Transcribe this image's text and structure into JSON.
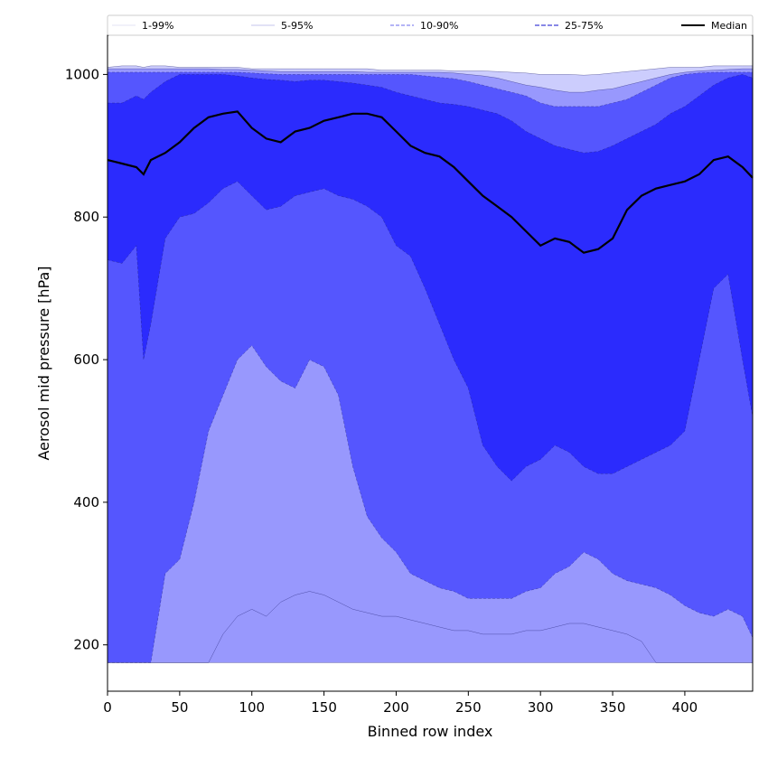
{
  "chart_data": {
    "type": "area",
    "xlabel": "Binned row index",
    "ylabel": "Aerosol mid pressure [hPa]",
    "xlim": [
      0,
      447
    ],
    "ylim": [
      135,
      1055
    ],
    "xticks": [
      0,
      50,
      100,
      150,
      200,
      250,
      300,
      350,
      400
    ],
    "yticks": [
      200,
      400,
      600,
      800,
      1000
    ],
    "grid": false,
    "legend_placement": "top (above plot)",
    "x": [
      0,
      10,
      20,
      25,
      30,
      40,
      50,
      60,
      70,
      80,
      90,
      100,
      110,
      120,
      130,
      140,
      150,
      160,
      170,
      180,
      190,
      200,
      210,
      220,
      230,
      240,
      250,
      260,
      270,
      280,
      290,
      300,
      310,
      320,
      330,
      340,
      350,
      360,
      370,
      380,
      390,
      400,
      410,
      420,
      430,
      440,
      447
    ],
    "bands": [
      {
        "name": "1-99%",
        "color": "#cccdfd",
        "line_style": "solid",
        "lower": [
          175,
          175,
          175,
          175,
          175,
          175,
          175,
          175,
          175,
          215,
          240,
          250,
          240,
          260,
          270,
          275,
          270,
          260,
          250,
          245,
          240,
          240,
          235,
          230,
          225,
          220,
          220,
          215,
          215,
          215,
          220,
          220,
          225,
          230,
          230,
          225,
          220,
          215,
          205,
          175,
          175,
          175,
          175,
          175,
          175,
          175,
          175
        ],
        "upper": [
          1010,
          1012,
          1012,
          1010,
          1012,
          1012,
          1010,
          1010,
          1010,
          1010,
          1010,
          1008,
          1008,
          1008,
          1008,
          1008,
          1008,
          1008,
          1008,
          1008,
          1006,
          1006,
          1006,
          1006,
          1006,
          1005,
          1005,
          1005,
          1004,
          1003,
          1002,
          1000,
          1000,
          1000,
          999,
          1000,
          1002,
          1004,
          1006,
          1008,
          1010,
          1010,
          1010,
          1012,
          1012,
          1012,
          1012
        ]
      },
      {
        "name": "5-95%",
        "color": "#9898fd",
        "line_style": "solid",
        "lower": [
          175,
          175,
          175,
          175,
          175,
          175,
          175,
          175,
          175,
          175,
          175,
          175,
          175,
          175,
          175,
          175,
          175,
          175,
          175,
          175,
          175,
          175,
          175,
          175,
          175,
          175,
          175,
          175,
          175,
          175,
          175,
          175,
          175,
          175,
          175,
          175,
          175,
          175,
          175,
          175,
          175,
          175,
          175,
          175,
          175,
          175,
          175
        ],
        "upper": [
          1008,
          1008,
          1008,
          1008,
          1008,
          1008,
          1008,
          1008,
          1008,
          1007,
          1007,
          1006,
          1005,
          1004,
          1004,
          1004,
          1004,
          1004,
          1004,
          1003,
          1003,
          1003,
          1003,
          1003,
          1003,
          1002,
          1000,
          998,
          995,
          990,
          985,
          982,
          978,
          975,
          975,
          978,
          980,
          985,
          990,
          995,
          1000,
          1003,
          1005,
          1006,
          1007,
          1008,
          1008
        ]
      },
      {
        "name": "10-90%",
        "color": "#5556fe",
        "line_style": "dashed",
        "lower": [
          175,
          175,
          175,
          175,
          175,
          300,
          320,
          400,
          500,
          550,
          600,
          620,
          590,
          570,
          560,
          600,
          590,
          550,
          450,
          380,
          350,
          330,
          300,
          290,
          280,
          275,
          265,
          265,
          265,
          265,
          275,
          280,
          300,
          310,
          330,
          320,
          300,
          290,
          285,
          280,
          270,
          255,
          245,
          240,
          250,
          240,
          210
        ],
        "upper": [
          1003,
          1003,
          1003,
          1003,
          1003,
          1003,
          1003,
          1003,
          1003,
          1003,
          1003,
          1002,
          1001,
          1000,
          1000,
          1000,
          1000,
          1000,
          1000,
          1000,
          1000,
          1000,
          1000,
          998,
          996,
          994,
          990,
          985,
          980,
          975,
          970,
          960,
          955,
          955,
          955,
          955,
          960,
          965,
          975,
          985,
          995,
          1000,
          1002,
          1003,
          1003,
          1003,
          1003
        ]
      },
      {
        "name": "25-75%",
        "color": "#2b2bfd",
        "line_style": "dashed",
        "lower": [
          740,
          735,
          760,
          600,
          650,
          770,
          800,
          805,
          820,
          840,
          850,
          830,
          810,
          815,
          830,
          835,
          840,
          830,
          825,
          815,
          800,
          760,
          745,
          700,
          650,
          600,
          560,
          480,
          450,
          430,
          450,
          460,
          480,
          470,
          450,
          440,
          440,
          450,
          460,
          470,
          480,
          500,
          600,
          700,
          720,
          600,
          520
        ],
        "upper": [
          960,
          960,
          970,
          965,
          975,
          990,
          1000,
          1000,
          1000,
          1000,
          998,
          995,
          993,
          992,
          990,
          992,
          992,
          990,
          988,
          985,
          982,
          975,
          970,
          965,
          960,
          958,
          955,
          950,
          945,
          935,
          920,
          910,
          900,
          895,
          890,
          892,
          900,
          910,
          920,
          930,
          945,
          955,
          970,
          985,
          995,
          1000,
          995
        ]
      }
    ],
    "series": [
      {
        "name": "Median",
        "color": "#000000",
        "values": [
          880,
          875,
          870,
          860,
          880,
          890,
          905,
          925,
          940,
          945,
          948,
          925,
          910,
          905,
          920,
          925,
          935,
          940,
          945,
          945,
          940,
          920,
          900,
          890,
          885,
          870,
          850,
          830,
          815,
          800,
          780,
          760,
          770,
          765,
          750,
          755,
          770,
          810,
          830,
          840,
          845,
          850,
          860,
          880,
          885,
          870,
          855
        ]
      }
    ],
    "legend": [
      {
        "label": "1-99%",
        "color": "#cccdfd",
        "line_style": "solid"
      },
      {
        "label": "5-95%",
        "color": "#9898fd",
        "line_style": "solid"
      },
      {
        "label": "10-90%",
        "color": "#5556fe",
        "line_style": "dashed"
      },
      {
        "label": "25-75%",
        "color": "#2b2bfd",
        "line_style": "dashed"
      },
      {
        "label": "Median",
        "color": "#000000",
        "line_style": "solid"
      }
    ]
  }
}
